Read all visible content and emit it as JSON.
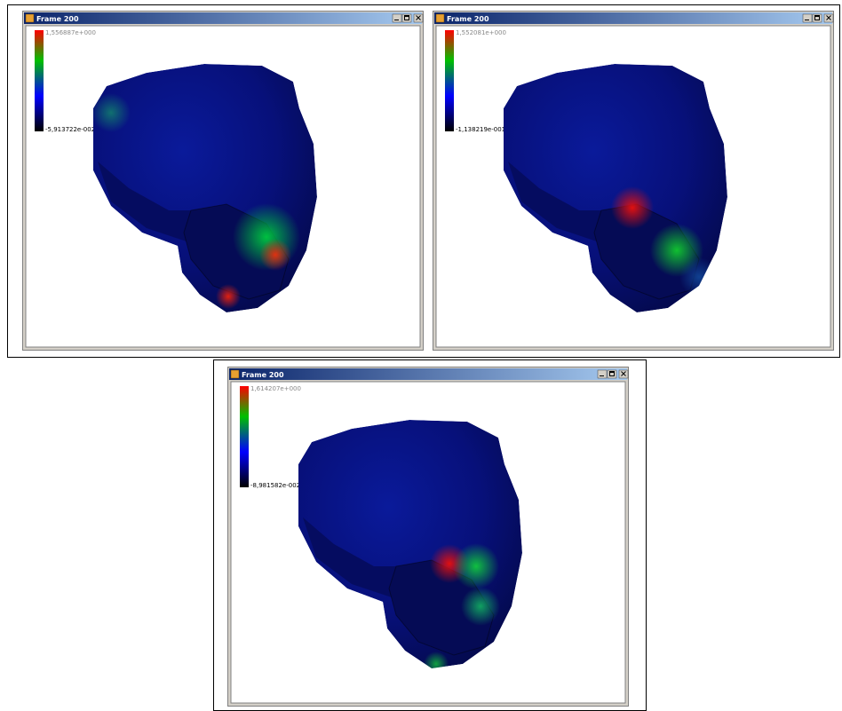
{
  "windows": [
    {
      "title": "Frame 200",
      "max_label": "1,556887e+000",
      "min_label": "-5,913722e-002"
    },
    {
      "title": "Frame 200",
      "max_label": "1,552081e+000",
      "min_label": "-1,138219e-001"
    },
    {
      "title": "Frame 200",
      "max_label": "1,614207e+000",
      "min_label": "-8,981582e-002"
    }
  ]
}
